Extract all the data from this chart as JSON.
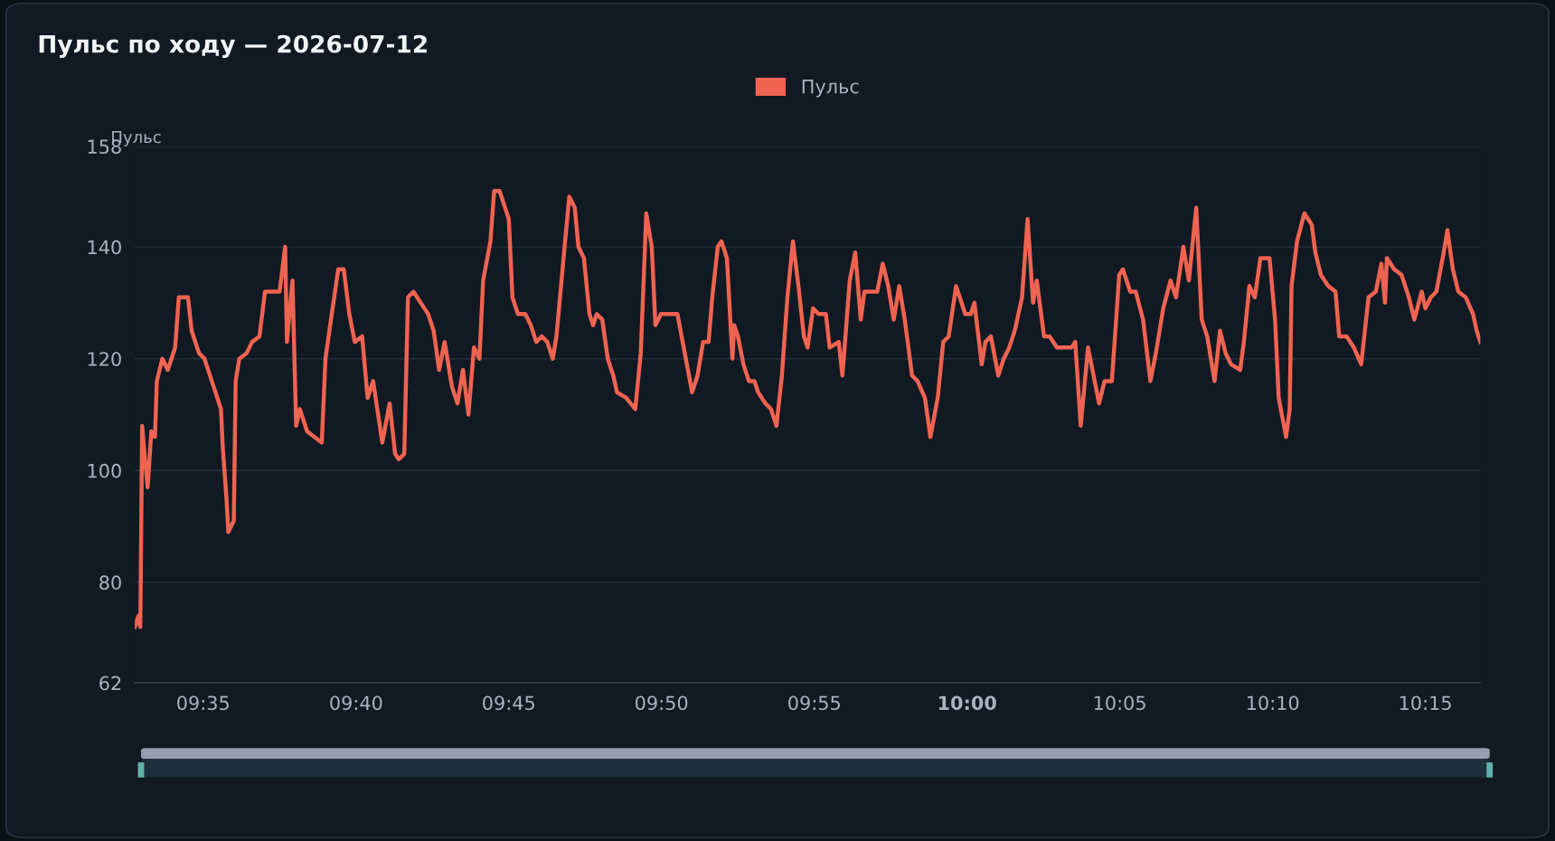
{
  "chart_data": {
    "type": "line",
    "title": "Пульс по ходу — 2026-07-12",
    "ylabel": "Пульс",
    "legend": "top",
    "grid": "y",
    "marker": "none",
    "line_style": "solid",
    "xlim": [
      9.546,
      10.28
    ],
    "xticks": [
      {
        "value": 9.5833,
        "label": "09:35"
      },
      {
        "value": 9.6667,
        "label": "09:40"
      },
      {
        "value": 9.75,
        "label": "09:45"
      },
      {
        "value": 9.8333,
        "label": "09:50"
      },
      {
        "value": 9.9167,
        "label": "09:55"
      },
      {
        "value": 10,
        "label": "10:00"
      },
      {
        "value": 10.0833,
        "label": "10:05"
      },
      {
        "value": 10.1667,
        "label": "10:10"
      },
      {
        "value": 10.25,
        "label": "10:15"
      }
    ],
    "ylim": [
      62,
      158
    ],
    "yticks": [
      62,
      80,
      100,
      120,
      140,
      158
    ],
    "x": [
      9.546,
      9.548,
      9.549,
      9.55,
      9.551,
      9.553,
      9.555,
      9.557,
      9.558,
      9.561,
      9.564,
      9.568,
      9.57,
      9.575,
      9.577,
      9.581,
      9.584,
      9.588,
      9.591,
      9.593,
      9.594,
      9.596,
      9.597,
      9.6,
      9.601,
      9.603,
      9.607,
      9.61,
      9.614,
      9.617,
      9.621,
      9.625,
      9.628,
      9.629,
      9.632,
      9.634,
      9.636,
      9.64,
      9.644,
      9.648,
      9.65,
      9.653,
      9.657,
      9.66,
      9.663,
      9.666,
      9.67,
      9.673,
      9.676,
      9.681,
      9.685,
      9.688,
      9.69,
      9.693,
      9.695,
      9.698,
      9.702,
      9.706,
      9.709,
      9.712,
      9.715,
      9.719,
      9.722,
      9.725,
      9.728,
      9.731,
      9.734,
      9.736,
      9.74,
      9.742,
      9.745,
      9.747,
      9.75,
      9.752,
      9.755,
      9.759,
      9.762,
      9.765,
      9.768,
      9.771,
      9.774,
      9.776,
      9.781,
      9.783,
      9.786,
      9.788,
      9.791,
      9.794,
      9.796,
      9.798,
      9.801,
      9.804,
      9.807,
      9.809,
      9.814,
      9.819,
      9.822,
      9.825,
      9.828,
      9.83,
      9.833,
      9.836,
      9.84,
      9.842,
      9.846,
      9.85,
      9.853,
      9.856,
      9.859,
      9.861,
      9.864,
      9.866,
      9.869,
      9.872,
      9.873,
      9.875,
      9.878,
      9.881,
      9.884,
      9.886,
      9.89,
      9.893,
      9.896,
      9.899,
      9.902,
      9.905,
      9.908,
      9.911,
      9.913,
      9.916,
      9.919,
      9.923,
      9.925,
      9.93,
      9.932,
      9.936,
      9.939,
      9.942,
      9.944,
      9.947,
      9.951,
      9.954,
      9.957,
      9.96,
      9.963,
      9.966,
      9.97,
      9.973,
      9.977,
      9.98,
      9.984,
      9.987,
      9.99,
      9.994,
      9.996,
      9.999,
      10.002,
      10.004,
      10.008,
      10.01,
      10.013,
      10.017,
      10.02,
      10.023,
      10.026,
      10.03,
      10.033,
      10.036,
      10.038,
      10.042,
      10.045,
      10.049,
      10.053,
      10.057,
      10.059,
      10.062,
      10.066,
      10.069,
      10.072,
      10.075,
      10.079,
      10.083,
      10.085,
      10.089,
      10.092,
      10.096,
      10.1,
      10.103,
      10.107,
      10.111,
      10.114,
      10.118,
      10.121,
      10.125,
      10.128,
      10.131,
      10.135,
      10.138,
      10.141,
      10.144,
      10.149,
      10.151,
      10.154,
      10.157,
      10.16,
      10.165,
      10.168,
      10.17,
      10.174,
      10.176,
      10.177,
      10.18,
      10.184,
      10.188,
      10.19,
      10.193,
      10.197,
      10.201,
      10.203,
      10.207,
      10.211,
      10.215,
      10.219,
      10.223,
      10.226,
      10.228,
      10.229,
      10.233,
      10.237,
      10.241,
      10.244,
      10.248,
      10.25,
      10.253,
      10.256,
      10.26,
      10.262,
      10.265,
      10.268,
      10.272,
      10.276,
      10.278,
      10.28
    ],
    "series": [
      {
        "name": "Пульс",
        "color": "#ef6351",
        "values": [
          72,
          74,
          72,
          108,
          104,
          97,
          107,
          106,
          116,
          120,
          118,
          122,
          131,
          131,
          125,
          121,
          120,
          116,
          113,
          111,
          104,
          95,
          89,
          91,
          116,
          120,
          121,
          123,
          124,
          132,
          132,
          132,
          140,
          123,
          134,
          108,
          111,
          107,
          106,
          105,
          120,
          127,
          136,
          136,
          128,
          123,
          124,
          113,
          116,
          105,
          112,
          103,
          102,
          103,
          131,
          132,
          130,
          128,
          125,
          118,
          123,
          115,
          112,
          118,
          110,
          122,
          120,
          134,
          141,
          150,
          150,
          148,
          145,
          131,
          128,
          128,
          126,
          123,
          124,
          123,
          120,
          124,
          142,
          149,
          147,
          140,
          138,
          128,
          126,
          128,
          127,
          120,
          117,
          114,
          113,
          111,
          121,
          146,
          140,
          126,
          128,
          128,
          128,
          128,
          121,
          114,
          117,
          123,
          123,
          131,
          140,
          141,
          138,
          120,
          126,
          124,
          119,
          116,
          116,
          114,
          112,
          111,
          108,
          117,
          131,
          141,
          133,
          124,
          122,
          129,
          128,
          128,
          122,
          123,
          117,
          134,
          139,
          127,
          132,
          132,
          132,
          137,
          133,
          127,
          133,
          127,
          117,
          116,
          113,
          106,
          113,
          123,
          124,
          133,
          131,
          128,
          128,
          130,
          119,
          123,
          124,
          117,
          120,
          122,
          125,
          131,
          145,
          130,
          134,
          124,
          124,
          122,
          122,
          122,
          123,
          108,
          122,
          117,
          112,
          116,
          116,
          135,
          136,
          132,
          132,
          127,
          116,
          121,
          129,
          134,
          131,
          140,
          134,
          147,
          127,
          124,
          116,
          125,
          121,
          119,
          118,
          123,
          133,
          131,
          138,
          138,
          127,
          113,
          106,
          111,
          133,
          141,
          146,
          144,
          139,
          135,
          133,
          132,
          124,
          124,
          122,
          119,
          131,
          132,
          137,
          130,
          138,
          136,
          135,
          131,
          127,
          132,
          129,
          131,
          132,
          139,
          143,
          136,
          132,
          131,
          128,
          125,
          123
        ]
      }
    ]
  }
}
